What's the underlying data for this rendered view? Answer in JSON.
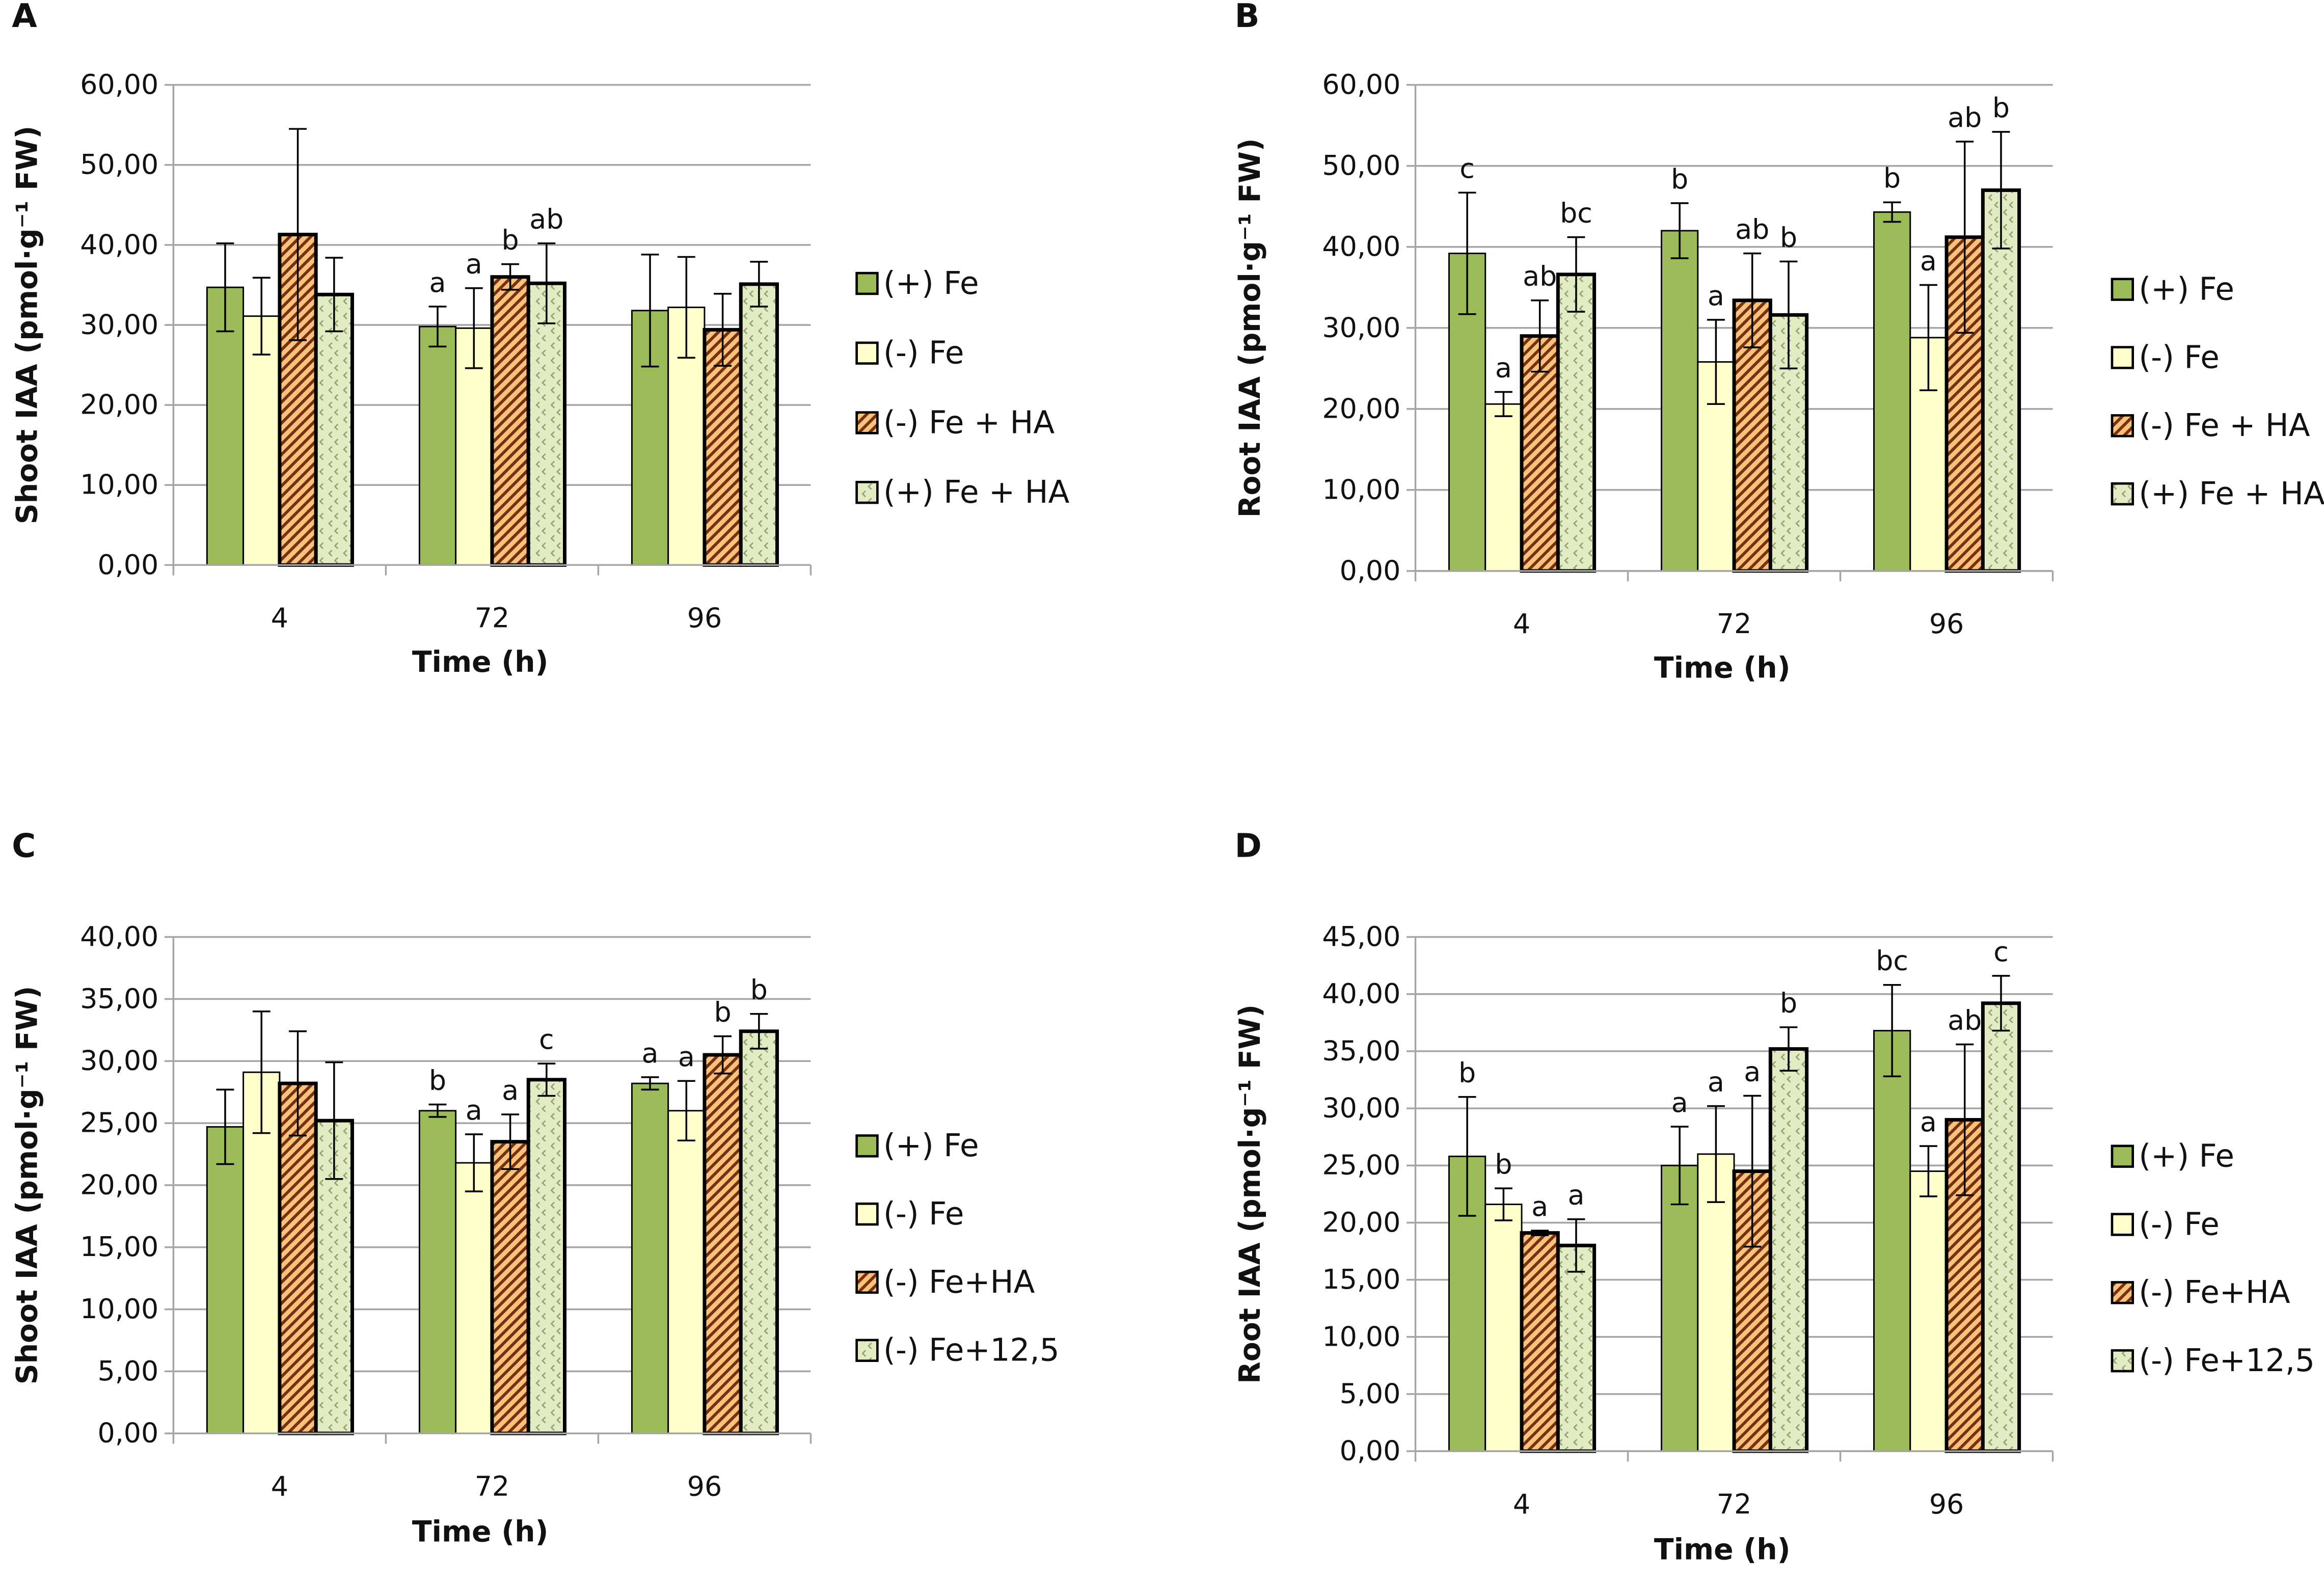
{
  "colors": {
    "fe_plus": "#9bbb59",
    "fe_minus": "#ffffcc",
    "hatch_bg": "#f6c37a",
    "hatch_line": "#7a2e12",
    "dot_bg": "#e2ebc4",
    "dot_mark": "#8fa468",
    "grid": "#a6a6a6"
  },
  "chart_data": [
    {
      "panel": "A",
      "type": "bar",
      "ylabel": "Shoot IAA (pmol·g⁻¹ FW)",
      "xlabel": "Time (h)",
      "ylim": [
        0,
        60
      ],
      "ystep": 10,
      "grid": true,
      "legend_position": "right",
      "categories": [
        "4",
        "72",
        "96"
      ],
      "series": [
        {
          "name": "(+) Fe",
          "pattern": "solid-green",
          "values": [
            34.7,
            29.8,
            31.8
          ],
          "errors": [
            5.5,
            2.5,
            7.0
          ],
          "letters": [
            "",
            "",
            ""
          ]
        },
        {
          "name": "(-) Fe",
          "pattern": "solid-cream",
          "values": [
            31.1,
            29.6,
            32.2
          ],
          "errors": [
            4.8,
            5.0,
            6.3
          ],
          "letters": [
            "",
            "a",
            ""
          ]
        },
        {
          "name": "(-) Fe + HA",
          "pattern": "hatch",
          "values": [
            41.3,
            36.0,
            29.4
          ],
          "errors": [
            13.2,
            1.6,
            4.5
          ],
          "letters": [
            "",
            "b",
            ""
          ]
        },
        {
          "name": "(+) Fe + HA",
          "pattern": "dots",
          "values": [
            33.8,
            35.2,
            35.1
          ],
          "errors": [
            4.6,
            5.0,
            2.8
          ],
          "letters": [
            "",
            "ab",
            ""
          ]
        }
      ],
      "extra_letters": [
        {
          "series": 0,
          "cat": 1,
          "text": "a"
        }
      ]
    },
    {
      "panel": "B",
      "type": "bar",
      "ylabel": "Root IAA (pmol·g⁻¹ FW)",
      "xlabel": "Time (h)",
      "ylim": [
        0,
        60
      ],
      "ystep": 10,
      "grid": true,
      "legend_position": "right",
      "categories": [
        "4",
        "72",
        "96"
      ],
      "series": [
        {
          "name": "(+) Fe",
          "pattern": "solid-green",
          "values": [
            39.2,
            42.0,
            44.3
          ],
          "errors": [
            7.5,
            3.4,
            1.2
          ],
          "letters": [
            "c",
            "b",
            "b"
          ]
        },
        {
          "name": "(-) Fe",
          "pattern": "solid-cream",
          "values": [
            20.6,
            25.8,
            28.8
          ],
          "errors": [
            1.5,
            5.2,
            6.5
          ],
          "letters": [
            "a",
            "a",
            "a"
          ]
        },
        {
          "name": "(-) Fe + HA",
          "pattern": "hatch",
          "values": [
            29.0,
            33.4,
            41.2
          ],
          "errors": [
            4.4,
            5.8,
            11.8
          ],
          "letters": [
            "ab",
            "ab",
            "ab"
          ]
        },
        {
          "name": "(+) Fe + HA",
          "pattern": "dots",
          "values": [
            36.6,
            31.6,
            47.0
          ],
          "errors": [
            4.6,
            6.6,
            7.2
          ],
          "letters": [
            "bc",
            "b",
            "b"
          ]
        }
      ]
    },
    {
      "panel": "C",
      "type": "bar",
      "ylabel": "Shoot IAA (pmol·g⁻¹ FW)",
      "xlabel": "Time (h)",
      "ylim": [
        0,
        40
      ],
      "ystep": 5,
      "grid": true,
      "legend_position": "right",
      "categories": [
        "4",
        "72",
        "96"
      ],
      "series": [
        {
          "name": "(+) Fe",
          "pattern": "solid-green",
          "values": [
            24.7,
            26.0,
            28.2
          ],
          "errors": [
            3.0,
            0.5,
            0.5
          ],
          "letters": [
            "",
            "b",
            "a"
          ]
        },
        {
          "name": "(-) Fe",
          "pattern": "solid-cream",
          "values": [
            29.1,
            21.8,
            26.0
          ],
          "errors": [
            4.9,
            2.3,
            2.4
          ],
          "letters": [
            "",
            "a",
            "a"
          ]
        },
        {
          "name": "(-) Fe+HA",
          "pattern": "hatch",
          "values": [
            28.2,
            23.5,
            30.5
          ],
          "errors": [
            4.2,
            2.2,
            1.5
          ],
          "letters": [
            "",
            "a",
            "b"
          ]
        },
        {
          "name": "(-) Fe+12,5",
          "pattern": "dots",
          "values": [
            25.2,
            28.5,
            32.4
          ],
          "errors": [
            4.7,
            1.3,
            1.4
          ],
          "letters": [
            "",
            "c",
            "b"
          ]
        }
      ]
    },
    {
      "panel": "D",
      "type": "bar",
      "ylabel": "Root IAA (pmol·g⁻¹ FW)",
      "xlabel": "Time (h)",
      "ylim": [
        0,
        45
      ],
      "ystep": 5,
      "grid": true,
      "legend_position": "right",
      "categories": [
        "4",
        "72",
        "96"
      ],
      "series": [
        {
          "name": "(+) Fe",
          "pattern": "solid-green",
          "values": [
            25.8,
            25.0,
            36.8
          ],
          "errors": [
            5.2,
            3.4,
            4.0
          ],
          "letters": [
            "b",
            "a",
            "bc"
          ]
        },
        {
          "name": "(-) Fe",
          "pattern": "solid-cream",
          "values": [
            21.6,
            26.0,
            24.5
          ],
          "errors": [
            1.4,
            4.2,
            2.2
          ],
          "letters": [
            "b",
            "a",
            "a"
          ]
        },
        {
          "name": "(-) Fe+HA",
          "pattern": "hatch",
          "values": [
            19.1,
            24.5,
            29.0
          ],
          "errors": [
            0.2,
            6.6,
            6.6
          ],
          "letters": [
            "a",
            "a",
            "ab"
          ]
        },
        {
          "name": "(-) Fe+12,5",
          "pattern": "dots",
          "values": [
            18.0,
            35.2,
            39.2
          ],
          "errors": [
            2.3,
            1.9,
            2.4
          ],
          "letters": [
            "a",
            "b",
            "c"
          ]
        }
      ]
    }
  ]
}
